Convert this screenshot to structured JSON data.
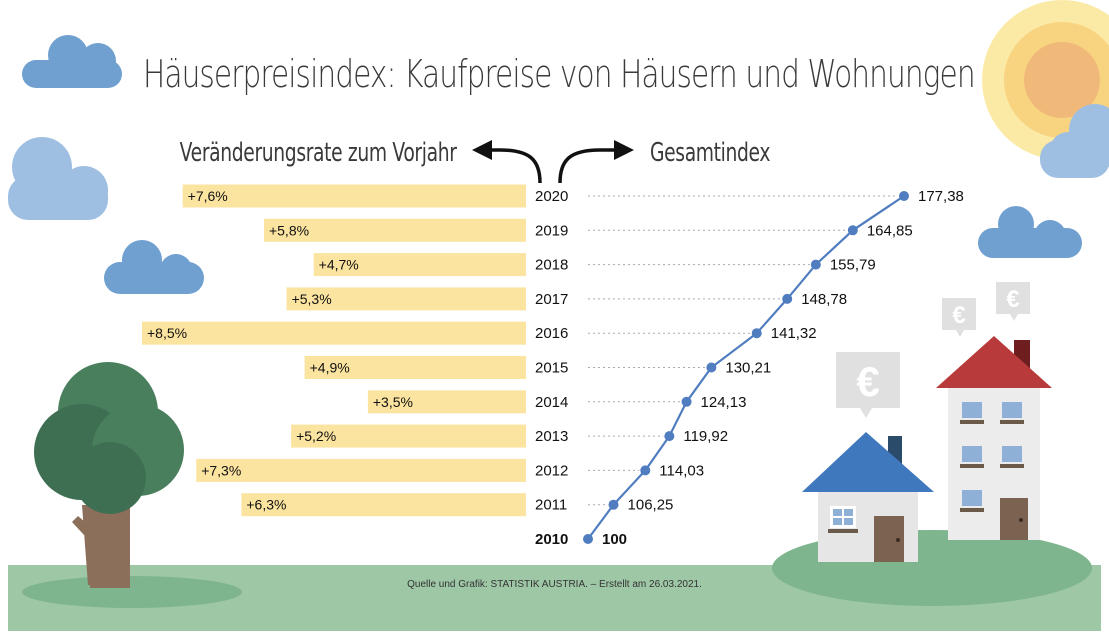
{
  "title": "Häuserpreisindex: Kaufpreise von Häusern und Wohnungen",
  "left_subtitle": "Veränderungsrate zum Vorjahr",
  "right_subtitle": "Gesamtindex",
  "source": "Quelle und Grafik:  STATISTIK AUSTRIA.  – Erstellt am 26.03.2021.",
  "currency_symbol": "€",
  "colors": {
    "bar": "#fbe3a0",
    "line": "#4f7dbf",
    "dots": "#aaaaaa",
    "grass": "#9ec7a6",
    "cloud": "#6fa0d0",
    "tree": "#4a7f5e",
    "roof_blue": "#3f78bd",
    "roof_red": "#b83a3a"
  },
  "chart_data": {
    "type": "bar+line",
    "categories": [
      "2020",
      "2019",
      "2018",
      "2017",
      "2016",
      "2015",
      "2014",
      "2013",
      "2012",
      "2011",
      "2010"
    ],
    "series": [
      {
        "name": "Veränderungsrate zum Vorjahr",
        "type": "bar",
        "orientation": "horizontal",
        "values": [
          7.6,
          5.8,
          4.7,
          5.3,
          8.5,
          4.9,
          3.5,
          5.2,
          7.3,
          6.3,
          null
        ],
        "labels": [
          "+7,6%",
          "+5,8%",
          "+4,7%",
          "+5,3%",
          "+8,5%",
          "+4,9%",
          "+3,5%",
          "+5,2%",
          "+7,3%",
          "+6,3%",
          ""
        ]
      },
      {
        "name": "Gesamtindex",
        "type": "line",
        "values": [
          177.38,
          164.85,
          155.79,
          148.78,
          141.32,
          130.21,
          124.13,
          119.92,
          114.03,
          106.25,
          100
        ],
        "labels": [
          "177,38",
          "164,85",
          "155,79",
          "148,78",
          "141,32",
          "130,21",
          "124,13",
          "119,92",
          "114,03",
          "106,25",
          "100"
        ]
      }
    ],
    "bar_max": 8.5,
    "index_range": [
      100,
      177.38
    ]
  }
}
